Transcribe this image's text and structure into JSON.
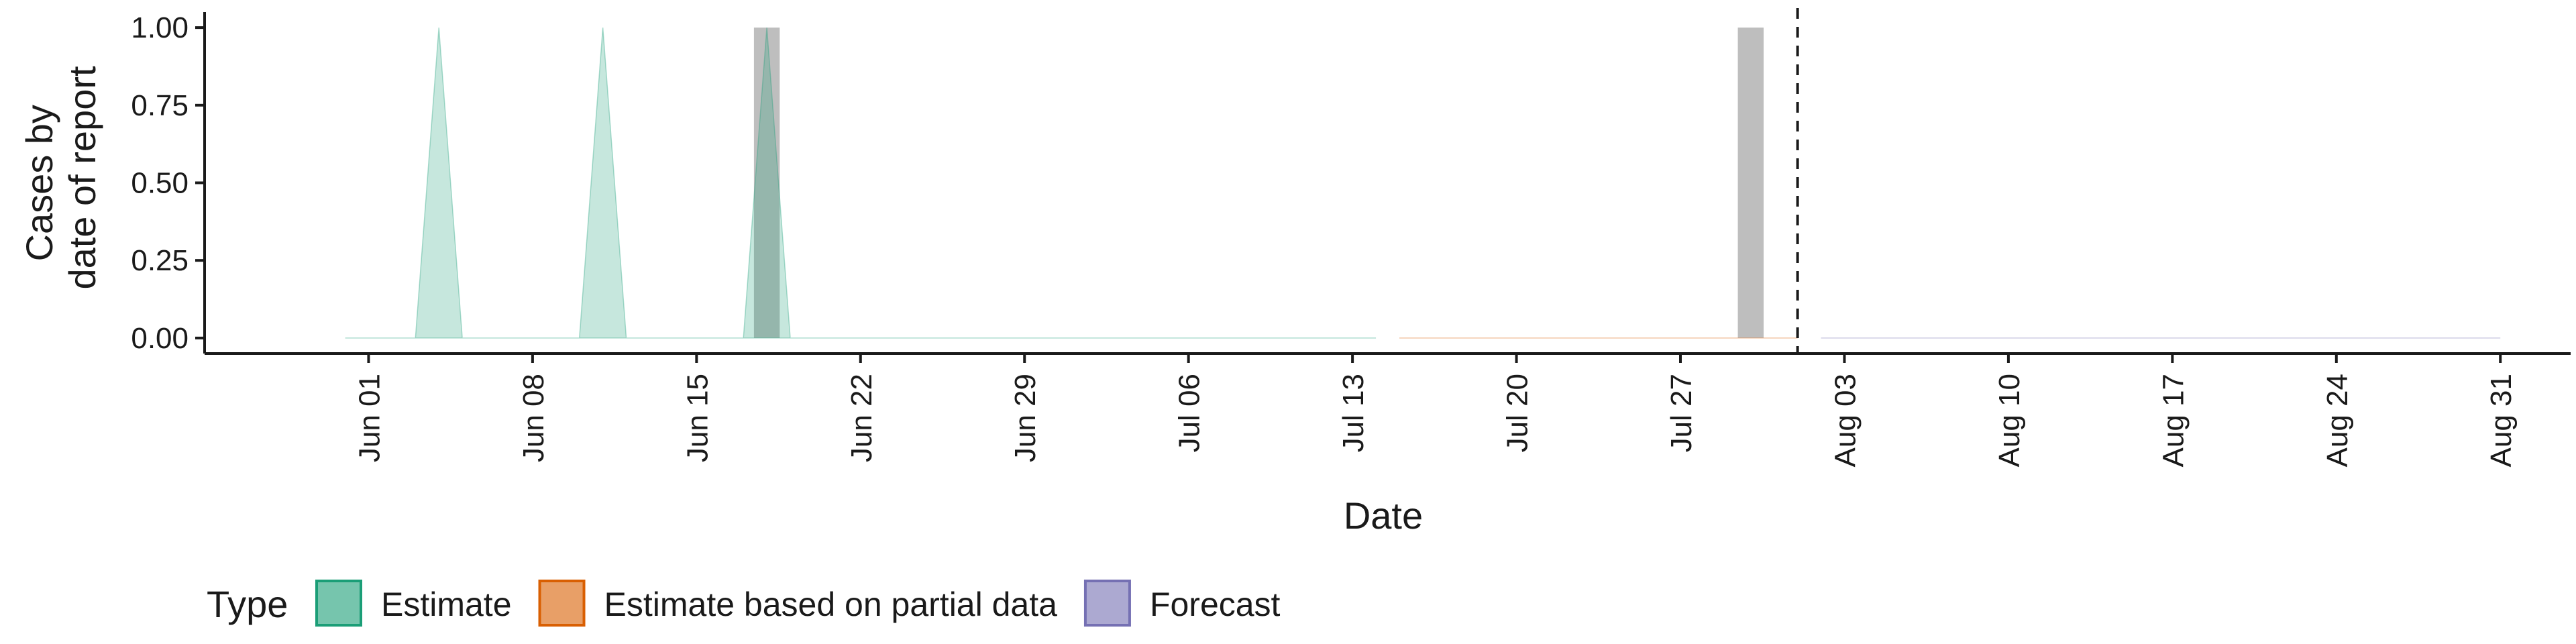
{
  "chart_data": {
    "type": "area",
    "xlabel": "Date",
    "ylabel_lines": [
      "Cases by",
      "date of report"
    ],
    "x_domain": [
      "2020-05-25",
      "2020-09-03"
    ],
    "ylim": [
      -0.05,
      1.05
    ],
    "y_ticks": [
      {
        "value": 0.0,
        "label": "0.00"
      },
      {
        "value": 0.25,
        "label": "0.25"
      },
      {
        "value": 0.5,
        "label": "0.50"
      },
      {
        "value": 0.75,
        "label": "0.75"
      },
      {
        "value": 1.0,
        "label": "1.00"
      }
    ],
    "x_ticks": [
      {
        "date": "2020-06-01",
        "label": "Jun 01"
      },
      {
        "date": "2020-06-08",
        "label": "Jun 08"
      },
      {
        "date": "2020-06-15",
        "label": "Jun 15"
      },
      {
        "date": "2020-06-22",
        "label": "Jun 22"
      },
      {
        "date": "2020-06-29",
        "label": "Jun 29"
      },
      {
        "date": "2020-07-06",
        "label": "Jul 06"
      },
      {
        "date": "2020-07-13",
        "label": "Jul 13"
      },
      {
        "date": "2020-07-20",
        "label": "Jul 20"
      },
      {
        "date": "2020-07-27",
        "label": "Jul 27"
      },
      {
        "date": "2020-08-03",
        "label": "Aug 03"
      },
      {
        "date": "2020-08-10",
        "label": "Aug 10"
      },
      {
        "date": "2020-08-17",
        "label": "Aug 17"
      },
      {
        "date": "2020-08-24",
        "label": "Aug 24"
      },
      {
        "date": "2020-08-31",
        "label": "Aug 31"
      }
    ],
    "observed_bars": [
      {
        "date": "2020-06-18",
        "value": 1
      },
      {
        "date": "2020-07-30",
        "value": 1
      }
    ],
    "series": [
      {
        "type_key": "estimate",
        "x": [
          "2020-05-31",
          "2020-06-03",
          "2020-06-04",
          "2020-06-05",
          "2020-06-10",
          "2020-06-11",
          "2020-06-12",
          "2020-06-17",
          "2020-06-18",
          "2020-06-19",
          "2020-07-14"
        ],
        "upper": [
          0,
          0,
          1,
          0,
          0,
          1,
          0,
          0,
          1,
          0,
          0
        ],
        "lower": [
          0,
          0,
          0,
          0,
          0,
          0,
          0,
          0,
          0,
          0,
          0
        ]
      },
      {
        "type_key": "partial",
        "x": [
          "2020-07-15",
          "2020-08-01"
        ],
        "upper": [
          0,
          0
        ],
        "lower": [
          0,
          0
        ]
      },
      {
        "type_key": "forecast",
        "x": [
          "2020-08-02",
          "2020-08-31"
        ],
        "upper": [
          0,
          0
        ],
        "lower": [
          0,
          0
        ]
      }
    ],
    "vline_date": "2020-08-01",
    "legend": {
      "title": "Type",
      "position": "bottom",
      "items": [
        {
          "key": "estimate",
          "label": "Estimate",
          "fill": "#1b9e77",
          "stroke": "#1b9e77"
        },
        {
          "key": "partial",
          "label": "Estimate based on partial data",
          "fill": "#d95f02",
          "stroke": "#d95f02"
        },
        {
          "key": "forecast",
          "label": "Forecast",
          "fill": "#7570b3",
          "stroke": "#7570b3"
        }
      ]
    },
    "colors": {
      "observed_bar": "#bebebe",
      "vline": "#1a1a1a",
      "axis": "#1a1a1a"
    }
  }
}
